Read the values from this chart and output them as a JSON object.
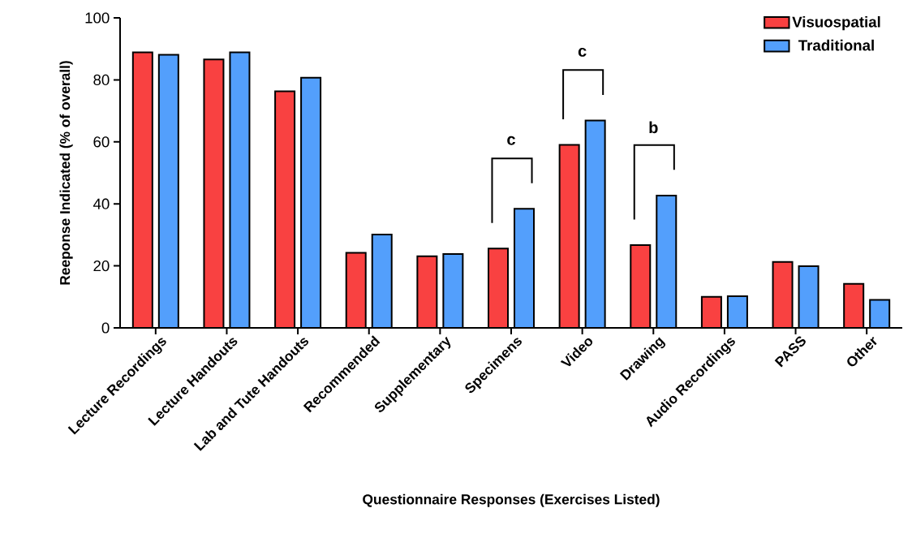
{
  "chart_data": {
    "type": "bar",
    "xlabel": "Questionnaire Responses (Exercises Listed)",
    "ylabel": "Reeponse Indicated (% of overall)",
    "categories": [
      "Lecture Recordings",
      "Lecture Handouts",
      "Lab and Tute Handouts",
      "Recommended",
      "Supplementary",
      "Specimens",
      "Video",
      "Drawing",
      "Audio Recordings",
      "PASS",
      "Other"
    ],
    "series": [
      {
        "name": "Visuospatial",
        "color": "#f94141",
        "values": [
          88.9,
          86.6,
          76.3,
          24.2,
          23.1,
          25.6,
          59.0,
          26.7,
          10.0,
          21.3,
          14.2
        ]
      },
      {
        "name": "Traditional",
        "color": "#539ffc",
        "values": [
          88.1,
          88.9,
          80.7,
          30.1,
          23.8,
          38.4,
          66.9,
          42.7,
          10.2,
          19.9,
          9.0
        ]
      }
    ],
    "ylim": [
      0,
      100
    ],
    "yticks": [
      0,
      20,
      40,
      60,
      80,
      100
    ],
    "legend": "top right",
    "annotations": [
      "c",
      "c",
      "b"
    ]
  }
}
